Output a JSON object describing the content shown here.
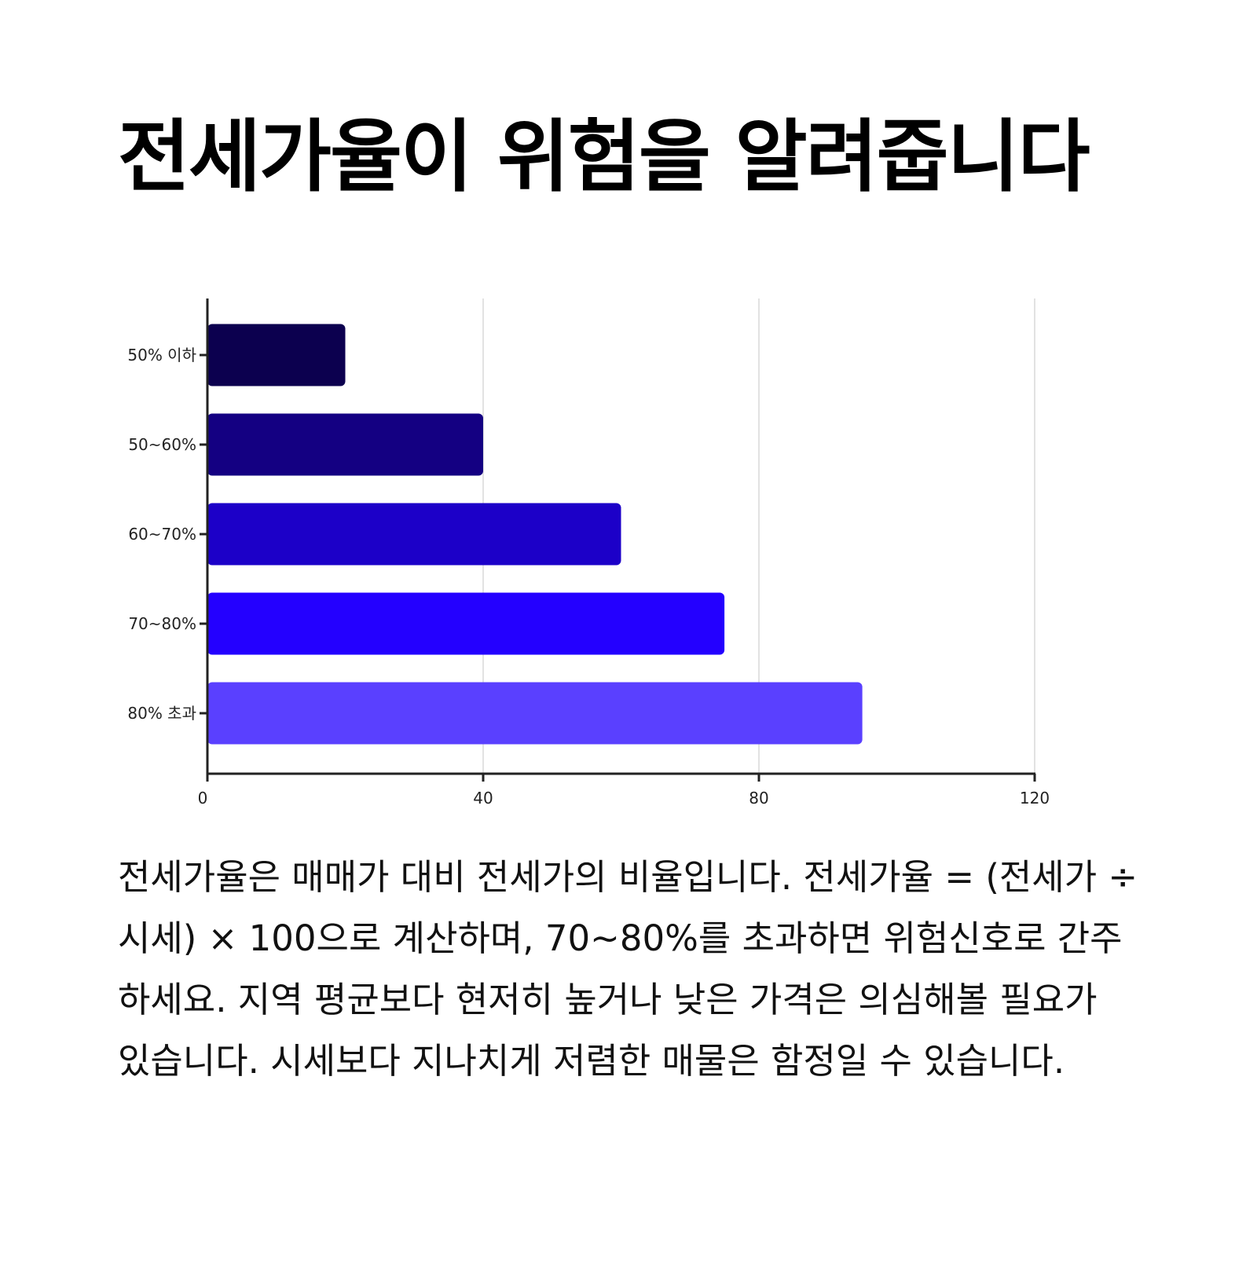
{
  "page": {
    "title": "전세가율이 위험을 알려줍니다",
    "description": "전세가율은 매매가 대비 전세가의 비율입니다. 전세가율 = (전세가 ÷ 시세) × 100으로 계산하며, 70~80%를 초과하면 위험신호로 간주하세요. 지역 평균보다 현저히 높거나 낮은 가격은 의심해볼 필요가 있습니다. 시세보다 지나치게 저렴한 매물은 함정일 수 있습니다."
  },
  "chart_data": {
    "type": "bar",
    "orientation": "horizontal",
    "categories": [
      "50% 이하",
      "50~60%",
      "60~70%",
      "70~80%",
      "80% 초과"
    ],
    "values": [
      20,
      40,
      60,
      75,
      95
    ],
    "colors": [
      "#0c004f",
      "#140082",
      "#1c00c8",
      "#2400ff",
      "#5a40ff"
    ],
    "xlim": [
      0,
      120
    ],
    "xticks": [
      "0",
      "40",
      "80",
      "120"
    ],
    "xtick_values": [
      0,
      40,
      80,
      120
    ],
    "grid": "vertical",
    "legend": "none"
  }
}
